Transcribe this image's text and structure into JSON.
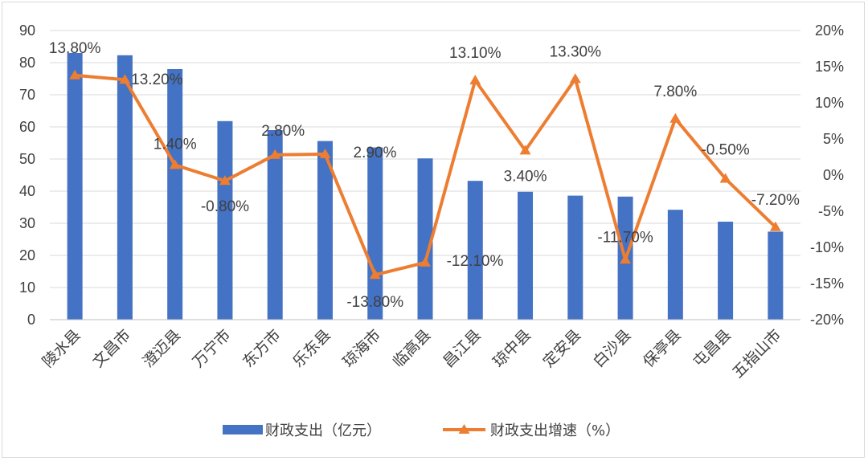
{
  "chart_data": {
    "type": "bar+line",
    "categories": [
      "陵水县",
      "文昌市",
      "澄迈县",
      "万宁市",
      "东方市",
      "乐东县",
      "琼海市",
      "临高县",
      "昌江县",
      "琼中县",
      "定安县",
      "白沙县",
      "保亭县",
      "屯昌县",
      "五指山市"
    ],
    "series": [
      {
        "name": "财政支出（亿元）",
        "type": "bar",
        "axis": "left",
        "color": "#4472C4",
        "values": [
          83,
          82.3,
          78,
          61.8,
          59,
          55.6,
          53.6,
          50.2,
          43.2,
          39.8,
          38.6,
          38.3,
          34.2,
          30.5,
          27.4
        ]
      },
      {
        "name": "财政支出增速（%）",
        "type": "line",
        "axis": "right",
        "color": "#ED7D31",
        "marker": "triangle",
        "values": [
          13.8,
          13.2,
          1.4,
          -0.8,
          2.8,
          2.9,
          -13.8,
          -12.1,
          13.1,
          3.4,
          13.3,
          -11.7,
          7.8,
          -0.5,
          -7.2
        ],
        "labels": [
          "13.80%",
          "13.20%",
          "1.40%",
          "-0.80%",
          "2.80%",
          "2.90%",
          "-13.80%",
          "-12.10%",
          "13.10%",
          "3.40%",
          "13.30%",
          "-11.70%",
          "7.80%",
          "-0.50%",
          "-7.20%"
        ]
      }
    ],
    "y_left": {
      "min": 0,
      "max": 90,
      "step": 10,
      "ticks": [
        "0",
        "10",
        "20",
        "30",
        "40",
        "50",
        "60",
        "70",
        "80",
        "90"
      ]
    },
    "y_right": {
      "min": -20,
      "max": 20,
      "step": 5,
      "ticks": [
        "-20%",
        "-15%",
        "-10%",
        "-5%",
        "0%",
        "5%",
        "10%",
        "15%",
        "20%"
      ]
    },
    "grid": true,
    "legend_position": "bottom"
  }
}
